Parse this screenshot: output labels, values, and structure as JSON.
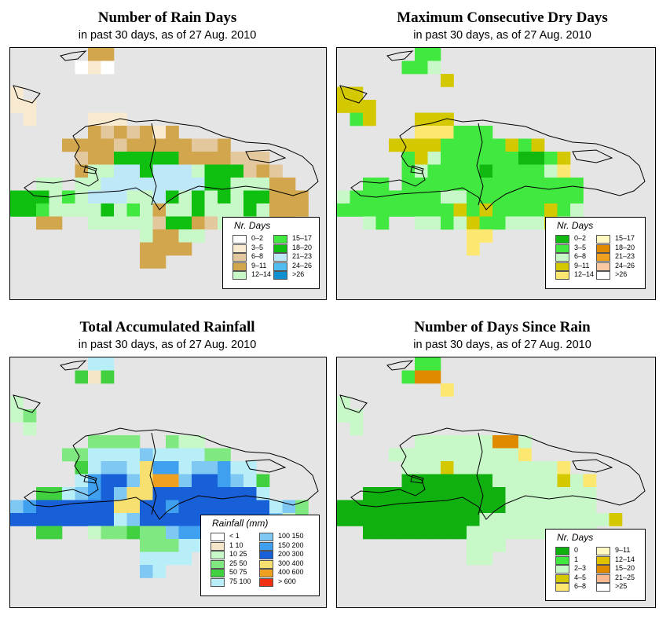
{
  "panels": [
    {
      "key": "rain_days",
      "title": "Number of Rain Days",
      "subtitle": "in past 30 days, as of  27 Aug. 2010",
      "legend": {
        "title": "Nr. Days",
        "items": [
          {
            "label": "0–2",
            "color": "#ffffff"
          },
          {
            "label": "3–5",
            "color": "#f8ead0"
          },
          {
            "label": "6–8",
            "color": "#e2c89c"
          },
          {
            "label": "9–11",
            "color": "#d2a64c"
          },
          {
            "label": "12–14",
            "color": "#c8f8c8"
          },
          {
            "label": "15–17",
            "color": "#40e840"
          },
          {
            "label": "18–20",
            "color": "#10c010"
          },
          {
            "label": "21–23",
            "color": "#bee8f8"
          },
          {
            "label": "24–26",
            "color": "#50bcf0"
          },
          {
            "label": ">26",
            "color": "#1090d0"
          }
        ]
      }
    },
    {
      "key": "dry_days",
      "title": "Maximum Consecutive Dry Days",
      "subtitle": "in past 30 days, as of  27 Aug. 2010",
      "legend": {
        "title": "Nr. Days",
        "items": [
          {
            "label": "0–2",
            "color": "#10b810"
          },
          {
            "label": "3–5",
            "color": "#40e840"
          },
          {
            "label": "6–8",
            "color": "#c8f8c8"
          },
          {
            "label": "9–11",
            "color": "#d4c800"
          },
          {
            "label": "12–14",
            "color": "#fce870"
          },
          {
            "label": "15–17",
            "color": "#fff8c0"
          },
          {
            "label": "18–20",
            "color": "#e08a00"
          },
          {
            "label": "21–23",
            "color": "#f0a020"
          },
          {
            "label": "24–26",
            "color": "#f8c8a0"
          },
          {
            "label": ">26",
            "color": "#ffffff"
          }
        ]
      }
    },
    {
      "key": "rainfall",
      "title": "Total Accumulated Rainfall",
      "subtitle": "in past 30 days, as of  27 Aug. 2010",
      "legend": {
        "title": "Rainfall (mm)",
        "items": [
          {
            "label": "< 1",
            "color": "#ffffff"
          },
          {
            "label": "1   10",
            "color": "#f6e6c8"
          },
          {
            "label": "10   25",
            "color": "#c8f8c8"
          },
          {
            "label": "25   50",
            "color": "#80e880"
          },
          {
            "label": "50   75",
            "color": "#40d040"
          },
          {
            "label": "75   100",
            "color": "#b8eef8"
          },
          {
            "label": "100   150",
            "color": "#80c8f4"
          },
          {
            "label": "150   200",
            "color": "#40a0f0"
          },
          {
            "label": "200   300",
            "color": "#1860d8"
          },
          {
            "label": "300   400",
            "color": "#f8e070"
          },
          {
            "label": "400   600",
            "color": "#f0a020"
          },
          {
            "label": "> 600",
            "color": "#f03010"
          }
        ]
      }
    },
    {
      "key": "since_rain",
      "title": "Number of Days Since Rain",
      "subtitle": "in past 30 days, as of  27 Aug. 2010",
      "legend": {
        "title": "Nr. Days",
        "items": [
          {
            "label": "0",
            "color": "#10b010"
          },
          {
            "label": "1",
            "color": "#40e840"
          },
          {
            "label": "2–3",
            "color": "#c8f8c8"
          },
          {
            "label": "4–5",
            "color": "#d4c800"
          },
          {
            "label": "6–8",
            "color": "#fce870"
          },
          {
            "label": "9–11",
            "color": "#fff8c0"
          },
          {
            "label": "12–14",
            "color": "#e0c000"
          },
          {
            "label": "15–20",
            "color": "#e08a00"
          },
          {
            "label": "21–25",
            "color": "#f8b890"
          },
          {
            "label": ">25",
            "color": "#ffffff"
          }
        ]
      }
    }
  ],
  "grid": {
    "rain_days": [
      "......DD................",
      ".....ABA................",
      "........................",
      "B.......................",
      "BB......................",
      ".B....BBB...............",
      "......DCDCDBD...........",
      "....DDDDCDDDDDCCD.......",
      ".....CDDGGGGGDDDDCCC....",
      ".....DEEHHGHHHEGGGCDC...",
      "..EE.EEHHHHHHHHGGEEEDD..",
      "GGGEFEHHHEEHGEGEGEGGDDD.",
      "GGFEEEEGEFEDEEGEEEGEDDD.",
      "..DD..EEEEECGGDCEEEEDD..",
      "..........EDDEE.........",
      "..........DDDD..........",
      "..........DD............"
    ],
    "dry_days": [
      "......FF..........",
      ".....BBC..........",
      "........D.........",
      "DD................",
      "DDD...............",
      ".BD...DDD.........",
      "......EEEBBB......",
      "....DDDDBBBBBDBD..",
      ".....BDCBBBBBBAABD",
      ".....BCBBBBABBBBCE",
      "..BB.BBBBBBBBBBBBBB",
      "CBBBBBBBCCBBBBBBBBB",
      "BBBBBBBBBDBDBBBBDBC",
      "..CB..CCBCDBBCCCDCC",
      "..........EE......",
      "..........E......."
    ],
    "rainfall": [
      "......FF................",
      ".....EBE................",
      "........................",
      "C.......................",
      "CD......................",
      ".C......................",
      "......DDDD..DCC.........",
      "....DDFFFFGFFFFDD.......",
      ".....EFGGFJHHFGGHFF.....",
      ".....FHIIGJKKGIIHGFE....",
      "..EEFGHIGJJIIIIIIIIF....",
      "GHIIIIIIJJIIHIIIIIIIFGD.",
      "IIIIIIIIFGIIIIIIIIIIGCD.",
      "..EE..CDDEDDGHHFFGFD....",
      "..........DDDFF.........",
      "..........FFFF..........",
      "..........GF............"
    ],
    "since_rain": [
      "......BB..........",
      ".....BGG..........",
      "........E.........",
      "C.................",
      "CC................",
      ".C................",
      "......CCCCCCHHC...",
      "....CCCCCCCCCCE...",
      ".....CCCDCCCCCCCCE..",
      ".....AAAAAAACCCCCDCE",
      "..AAAAAAAAAAACCCCCCC",
      "AAAAAAAAAAAAACCCCCCC",
      "AAAAAAAAAAACCCCCCCCCCD",
      "..AAAAAAAACCCCCCCCCC",
      "..........CCC.....",
      "..........CC......"
    ]
  },
  "codes": {
    "rain_days": {
      "A": "#ffffff",
      "B": "#f8ead0",
      "C": "#e2c89c",
      "D": "#d2a64c",
      "E": "#c8f8c8",
      "F": "#40e840",
      "G": "#10c010",
      "H": "#bee8f8",
      "I": "#50bcf0",
      "J": "#1090d0"
    },
    "dry_days": {
      "A": "#10b810",
      "B": "#40e840",
      "C": "#c8f8c8",
      "D": "#d4c800",
      "E": "#fce870",
      "F": "#40e840"
    },
    "rainfall": {
      "A": "#ffffff",
      "B": "#f6e6c8",
      "C": "#c8f8c8",
      "D": "#80e880",
      "E": "#40d040",
      "F": "#b8eef8",
      "G": "#80c8f4",
      "H": "#40a0f0",
      "I": "#1860d8",
      "J": "#f8e070",
      "K": "#f0a020"
    },
    "since_rain": {
      "A": "#10b010",
      "B": "#40e840",
      "C": "#c8f8c8",
      "D": "#d4c800",
      "E": "#fce870",
      "F": "#fff8c0",
      "G": "#e08a00",
      "H": "#e08a00"
    }
  }
}
